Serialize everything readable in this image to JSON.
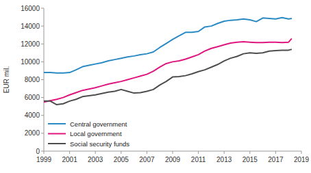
{
  "chart_data": {
    "type": "line",
    "y_label": "EUR mil.",
    "x": [
      1999,
      1999.5,
      2000,
      2000.5,
      2001,
      2001.5,
      2002,
      2002.5,
      2003,
      2003.5,
      2004,
      2004.5,
      2005,
      2005.5,
      2006,
      2006.5,
      2007,
      2007.5,
      2008,
      2008.5,
      2009,
      2009.5,
      2010,
      2010.5,
      2011,
      2011.5,
      2012,
      2012.5,
      2013,
      2013.5,
      2014,
      2014.5,
      2015,
      2015.5,
      2016,
      2016.5,
      2017,
      2017.5,
      2018,
      2018.25
    ],
    "series": [
      {
        "name": "Central government",
        "color": "#2a8ac4",
        "values": [
          8800,
          8800,
          8750,
          8750,
          8800,
          9100,
          9450,
          9600,
          9750,
          9900,
          10100,
          10250,
          10400,
          10550,
          10650,
          10800,
          10900,
          11100,
          11600,
          12050,
          12500,
          12900,
          13300,
          13300,
          13400,
          13900,
          14000,
          14300,
          14550,
          14650,
          14700,
          14800,
          14700,
          14500,
          14900,
          14850,
          14800,
          14950,
          14800,
          14850
        ]
      },
      {
        "name": "Local government",
        "color": "#e0157e",
        "values": [
          5500,
          5650,
          5800,
          6000,
          6300,
          6550,
          6800,
          6950,
          7100,
          7300,
          7500,
          7650,
          7800,
          8000,
          8200,
          8400,
          8600,
          8950,
          9400,
          9800,
          10000,
          10100,
          10300,
          10550,
          10800,
          11200,
          11500,
          11700,
          11900,
          12100,
          12200,
          12250,
          12200,
          12150,
          12150,
          12200,
          12200,
          12150,
          12200,
          12600
        ]
      },
      {
        "name": "Social security funds",
        "color": "#4d4d4d",
        "values": [
          5600,
          5600,
          5200,
          5300,
          5600,
          5800,
          6100,
          6200,
          6300,
          6450,
          6600,
          6700,
          6900,
          6700,
          6500,
          6550,
          6700,
          6900,
          7400,
          7800,
          8300,
          8350,
          8450,
          8650,
          8900,
          9100,
          9400,
          9700,
          10100,
          10400,
          10600,
          10900,
          11000,
          10950,
          11000,
          11200,
          11250,
          11300,
          11300,
          11400
        ]
      }
    ],
    "xlim": [
      1999,
      2019
    ],
    "xticks": [
      1999,
      2001,
      2003,
      2005,
      2007,
      2009,
      2011,
      2013,
      2015,
      2017,
      2019
    ],
    "ylim": [
      0,
      16000
    ],
    "yticks": [
      0,
      2000,
      4000,
      6000,
      8000,
      10000,
      12000,
      14000,
      16000
    ],
    "grid": false,
    "legend": "lower left"
  }
}
